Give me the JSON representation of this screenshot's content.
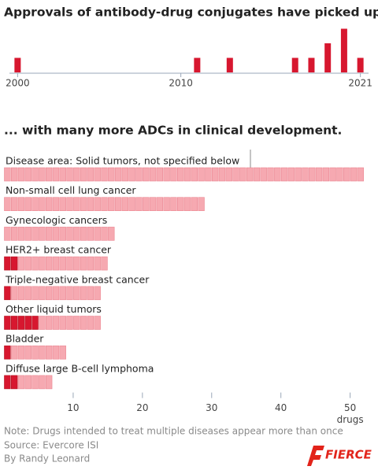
{
  "chart_data": [
    {
      "type": "bar",
      "title": "Approvals of antibody-drug conjugates have picked up ...",
      "x": [
        2000,
        2011,
        2013,
        2017,
        2018,
        2019,
        2020,
        2021
      ],
      "values": [
        1,
        1,
        1,
        1,
        1,
        2,
        3,
        1
      ],
      "color": "#d7172f",
      "xlim": [
        1999.5,
        2021.5
      ],
      "xticks": [
        2000,
        2010,
        2021
      ],
      "ylim": [
        0,
        3
      ]
    },
    {
      "type": "waffle-bar",
      "title": "... with many more ADCs in clinical development.",
      "categories": [
        "Disease area: Solid tumors, not specified below",
        "Non-small cell lung cancer",
        "Gynecologic cancers",
        "HER2+ breast cancer",
        "Triple-negative breast cancer",
        "Other liquid tumors",
        "Bladder",
        "Diffuse large B-cell lymphoma"
      ],
      "series": [
        {
          "color": "#d7172f",
          "values": [
            0,
            0,
            0,
            2,
            1,
            5,
            1,
            2
          ]
        },
        {
          "color": "#f6a9b1",
          "values": [
            52,
            29,
            16,
            13,
            13,
            9,
            8,
            5
          ]
        }
      ],
      "xlim": [
        0,
        53
      ],
      "xticks": [
        10,
        20,
        30,
        40,
        50
      ],
      "xlabel": "drugs"
    }
  ],
  "footer": {
    "note": "Note: Drugs intended to treat multiple diseases appear more than once",
    "source": "Source: Evercore ISI",
    "byline": "By Randy Leonard",
    "logo": "FIERCE"
  }
}
